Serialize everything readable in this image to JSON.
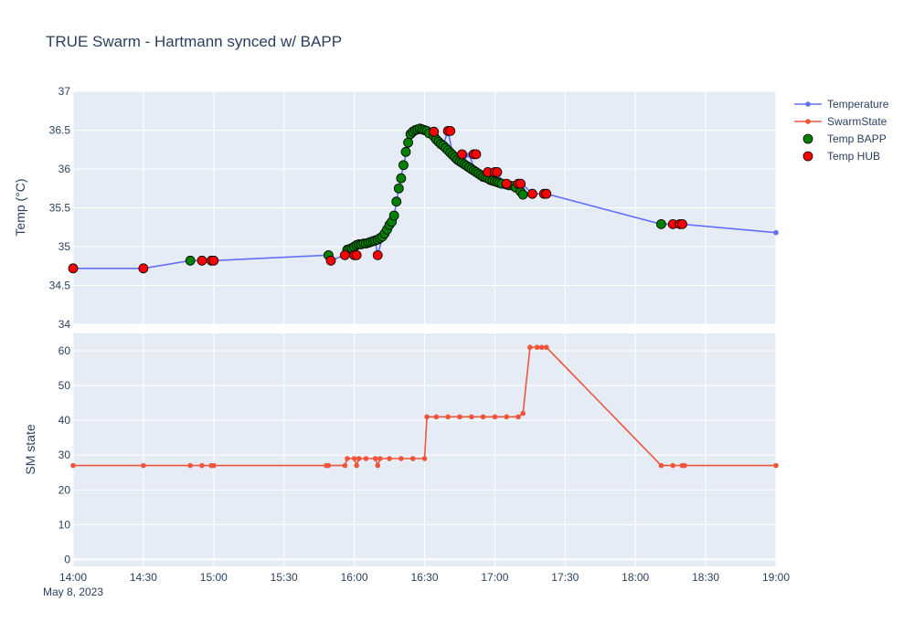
{
  "chart_data": {
    "type": "line",
    "title": "TRUE Swarm - Hartmann synced w/ BAPP",
    "x_axis": {
      "type": "time",
      "range": [
        "14:00",
        "19:00"
      ],
      "ticks": [
        "14:00",
        "14:30",
        "15:00",
        "15:30",
        "16:00",
        "16:30",
        "17:00",
        "17:30",
        "18:00",
        "18:30",
        "19:00"
      ],
      "date_label": "May 8, 2023"
    },
    "panels": [
      {
        "ylabel": "Temp (°C)",
        "ylim": [
          34,
          37
        ],
        "yticks": [
          "34",
          "34.5",
          "35",
          "35.5",
          "36",
          "36.5",
          "37"
        ]
      },
      {
        "ylabel": "SM state",
        "ylim": [
          -2,
          65
        ],
        "yticks": [
          "0",
          "10",
          "20",
          "30",
          "40",
          "50",
          "60"
        ]
      }
    ],
    "legend_position": "top-right",
    "series": [
      {
        "name": "Temperature",
        "panel": 0,
        "mode": "lines+markers",
        "color": "#636efa",
        "points": [
          [
            "14:00",
            34.72
          ],
          [
            "14:30",
            34.72
          ],
          [
            "14:50",
            34.82
          ],
          [
            "14:55",
            34.82
          ],
          [
            "15:00",
            34.82
          ],
          [
            "15:49",
            34.89
          ],
          [
            "15:50",
            34.82
          ],
          [
            "15:56",
            34.89
          ],
          [
            "15:57",
            34.96
          ],
          [
            "16:00",
            34.89
          ],
          [
            "16:01",
            35.02
          ],
          [
            "16:05",
            35.04
          ],
          [
            "16:09",
            35.07
          ],
          [
            "16:10",
            34.89
          ],
          [
            "16:12",
            35.12
          ],
          [
            "16:15",
            35.22
          ],
          [
            "16:17",
            35.4
          ],
          [
            "16:19",
            35.75
          ],
          [
            "16:21",
            36.05
          ],
          [
            "16:23",
            36.3
          ],
          [
            "16:25",
            36.45
          ],
          [
            "16:27",
            36.5
          ],
          [
            "16:29",
            36.51
          ],
          [
            "16:31",
            36.48
          ],
          [
            "16:34",
            36.48
          ],
          [
            "16:36",
            36.35
          ],
          [
            "16:38",
            36.3
          ],
          [
            "16:40",
            36.5
          ],
          [
            "16:42",
            36.18
          ],
          [
            "16:46",
            36.1
          ],
          [
            "16:49",
            36.18
          ],
          [
            "16:52",
            35.96
          ],
          [
            "16:57",
            35.96
          ],
          [
            "17:00",
            35.96
          ],
          [
            "17:05",
            35.8
          ],
          [
            "17:08",
            35.8
          ],
          [
            "17:10",
            35.78
          ],
          [
            "17:12",
            35.8
          ],
          [
            "17:16",
            35.68
          ],
          [
            "17:21",
            35.68
          ],
          [
            "17:22",
            35.68
          ],
          [
            "18:11",
            35.29
          ],
          [
            "18:16",
            35.29
          ],
          [
            "18:19",
            35.29
          ],
          [
            "18:20",
            35.29
          ],
          [
            "19:00",
            35.18
          ]
        ]
      },
      {
        "name": "SwarmState",
        "panel": 1,
        "mode": "lines+markers",
        "color": "#ef553b",
        "points": [
          [
            "14:00",
            27
          ],
          [
            "14:30",
            27
          ],
          [
            "14:50",
            27
          ],
          [
            "14:55",
            27
          ],
          [
            "14:59",
            27
          ],
          [
            "15:00",
            27
          ],
          [
            "15:48",
            27
          ],
          [
            "15:49",
            27
          ],
          [
            "15:56",
            27
          ],
          [
            "15:57",
            29
          ],
          [
            "16:00",
            29
          ],
          [
            "16:01",
            27
          ],
          [
            "16:02",
            29
          ],
          [
            "16:05",
            29
          ],
          [
            "16:09",
            29
          ],
          [
            "16:10",
            27
          ],
          [
            "16:11",
            29
          ],
          [
            "16:15",
            29
          ],
          [
            "16:20",
            29
          ],
          [
            "16:25",
            29
          ],
          [
            "16:30",
            29
          ],
          [
            "16:31",
            41
          ],
          [
            "16:35",
            41
          ],
          [
            "16:40",
            41
          ],
          [
            "16:45",
            41
          ],
          [
            "16:50",
            41
          ],
          [
            "16:55",
            41
          ],
          [
            "17:00",
            41
          ],
          [
            "17:05",
            41
          ],
          [
            "17:10",
            41
          ],
          [
            "17:12",
            42
          ],
          [
            "17:15",
            61
          ],
          [
            "17:18",
            61
          ],
          [
            "17:20",
            61
          ],
          [
            "17:22",
            61
          ],
          [
            "18:11",
            27
          ],
          [
            "18:16",
            27
          ],
          [
            "18:20",
            27
          ],
          [
            "18:21",
            27
          ],
          [
            "19:00",
            27
          ]
        ]
      },
      {
        "name": "Temp BAPP",
        "panel": 0,
        "mode": "markers",
        "color": "#008000",
        "points": [
          [
            "14:50",
            34.82
          ],
          [
            "15:49",
            34.89
          ],
          [
            "15:57",
            34.96
          ],
          [
            "15:58",
            34.97
          ],
          [
            "15:59",
            34.98
          ],
          [
            "16:00",
            35.0
          ],
          [
            "16:01",
            35.02
          ],
          [
            "16:02",
            35.03
          ],
          [
            "16:03",
            35.03
          ],
          [
            "16:04",
            35.04
          ],
          [
            "16:05",
            35.04
          ],
          [
            "16:06",
            35.05
          ],
          [
            "16:07",
            35.06
          ],
          [
            "16:08",
            35.07
          ],
          [
            "16:09",
            35.08
          ],
          [
            "16:10",
            35.09
          ],
          [
            "16:11",
            35.11
          ],
          [
            "16:12",
            35.13
          ],
          [
            "16:13",
            35.17
          ],
          [
            "16:14",
            35.22
          ],
          [
            "16:15",
            35.28
          ],
          [
            "16:16",
            35.32
          ],
          [
            "16:17",
            35.4
          ],
          [
            "16:18",
            35.58
          ],
          [
            "16:19",
            35.75
          ],
          [
            "16:20",
            35.88
          ],
          [
            "16:21",
            36.05
          ],
          [
            "16:22",
            36.22
          ],
          [
            "16:23",
            36.34
          ],
          [
            "16:24",
            36.45
          ],
          [
            "16:25",
            36.48
          ],
          [
            "16:26",
            36.5
          ],
          [
            "16:27",
            36.51
          ],
          [
            "16:28",
            36.52
          ],
          [
            "16:29",
            36.51
          ],
          [
            "16:30",
            36.5
          ],
          [
            "16:31",
            36.49
          ],
          [
            "16:32",
            36.46
          ],
          [
            "16:34",
            36.42
          ],
          [
            "16:35",
            36.38
          ],
          [
            "16:36",
            36.35
          ],
          [
            "16:37",
            36.32
          ],
          [
            "16:38",
            36.3
          ],
          [
            "16:39",
            36.27
          ],
          [
            "16:40",
            36.24
          ],
          [
            "16:41",
            36.21
          ],
          [
            "16:42",
            36.18
          ],
          [
            "16:43",
            36.15
          ],
          [
            "16:44",
            36.12
          ],
          [
            "16:45",
            36.1
          ],
          [
            "16:46",
            36.08
          ],
          [
            "16:47",
            36.06
          ],
          [
            "16:48",
            36.04
          ],
          [
            "16:49",
            36.02
          ],
          [
            "16:50",
            36.0
          ],
          [
            "16:51",
            35.98
          ],
          [
            "16:52",
            35.96
          ],
          [
            "16:53",
            35.94
          ],
          [
            "16:54",
            35.92
          ],
          [
            "16:55",
            35.9
          ],
          [
            "16:56",
            35.89
          ],
          [
            "16:57",
            35.88
          ],
          [
            "16:58",
            35.86
          ],
          [
            "16:59",
            35.85
          ],
          [
            "17:00",
            35.84
          ],
          [
            "17:01",
            35.83
          ],
          [
            "17:02",
            35.82
          ],
          [
            "17:03",
            35.81
          ],
          [
            "17:05",
            35.8
          ],
          [
            "17:06",
            35.79
          ],
          [
            "17:08",
            35.78
          ],
          [
            "17:09",
            35.76
          ],
          [
            "17:11",
            35.71
          ],
          [
            "17:12",
            35.67
          ],
          [
            "18:11",
            35.29
          ]
        ]
      },
      {
        "name": "Temp HUB",
        "panel": 0,
        "mode": "markers",
        "color": "#ff0000",
        "points": [
          [
            "14:00",
            34.72
          ],
          [
            "14:30",
            34.72
          ],
          [
            "14:55",
            34.82
          ],
          [
            "14:59",
            34.82
          ],
          [
            "15:00",
            34.82
          ],
          [
            "15:50",
            34.82
          ],
          [
            "15:56",
            34.89
          ],
          [
            "16:00",
            34.89
          ],
          [
            "16:01",
            34.89
          ],
          [
            "16:10",
            34.89
          ],
          [
            "16:34",
            36.48
          ],
          [
            "16:40",
            36.49
          ],
          [
            "16:41",
            36.49
          ],
          [
            "16:46",
            36.19
          ],
          [
            "16:51",
            36.19
          ],
          [
            "16:52",
            36.19
          ],
          [
            "16:57",
            35.96
          ],
          [
            "17:00",
            35.96
          ],
          [
            "17:01",
            35.96
          ],
          [
            "17:05",
            35.81
          ],
          [
            "17:10",
            35.81
          ],
          [
            "17:11",
            35.81
          ],
          [
            "17:16",
            35.68
          ],
          [
            "17:21",
            35.68
          ],
          [
            "17:22",
            35.68
          ],
          [
            "18:16",
            35.29
          ],
          [
            "18:19",
            35.29
          ],
          [
            "18:20",
            35.29
          ]
        ]
      }
    ]
  }
}
